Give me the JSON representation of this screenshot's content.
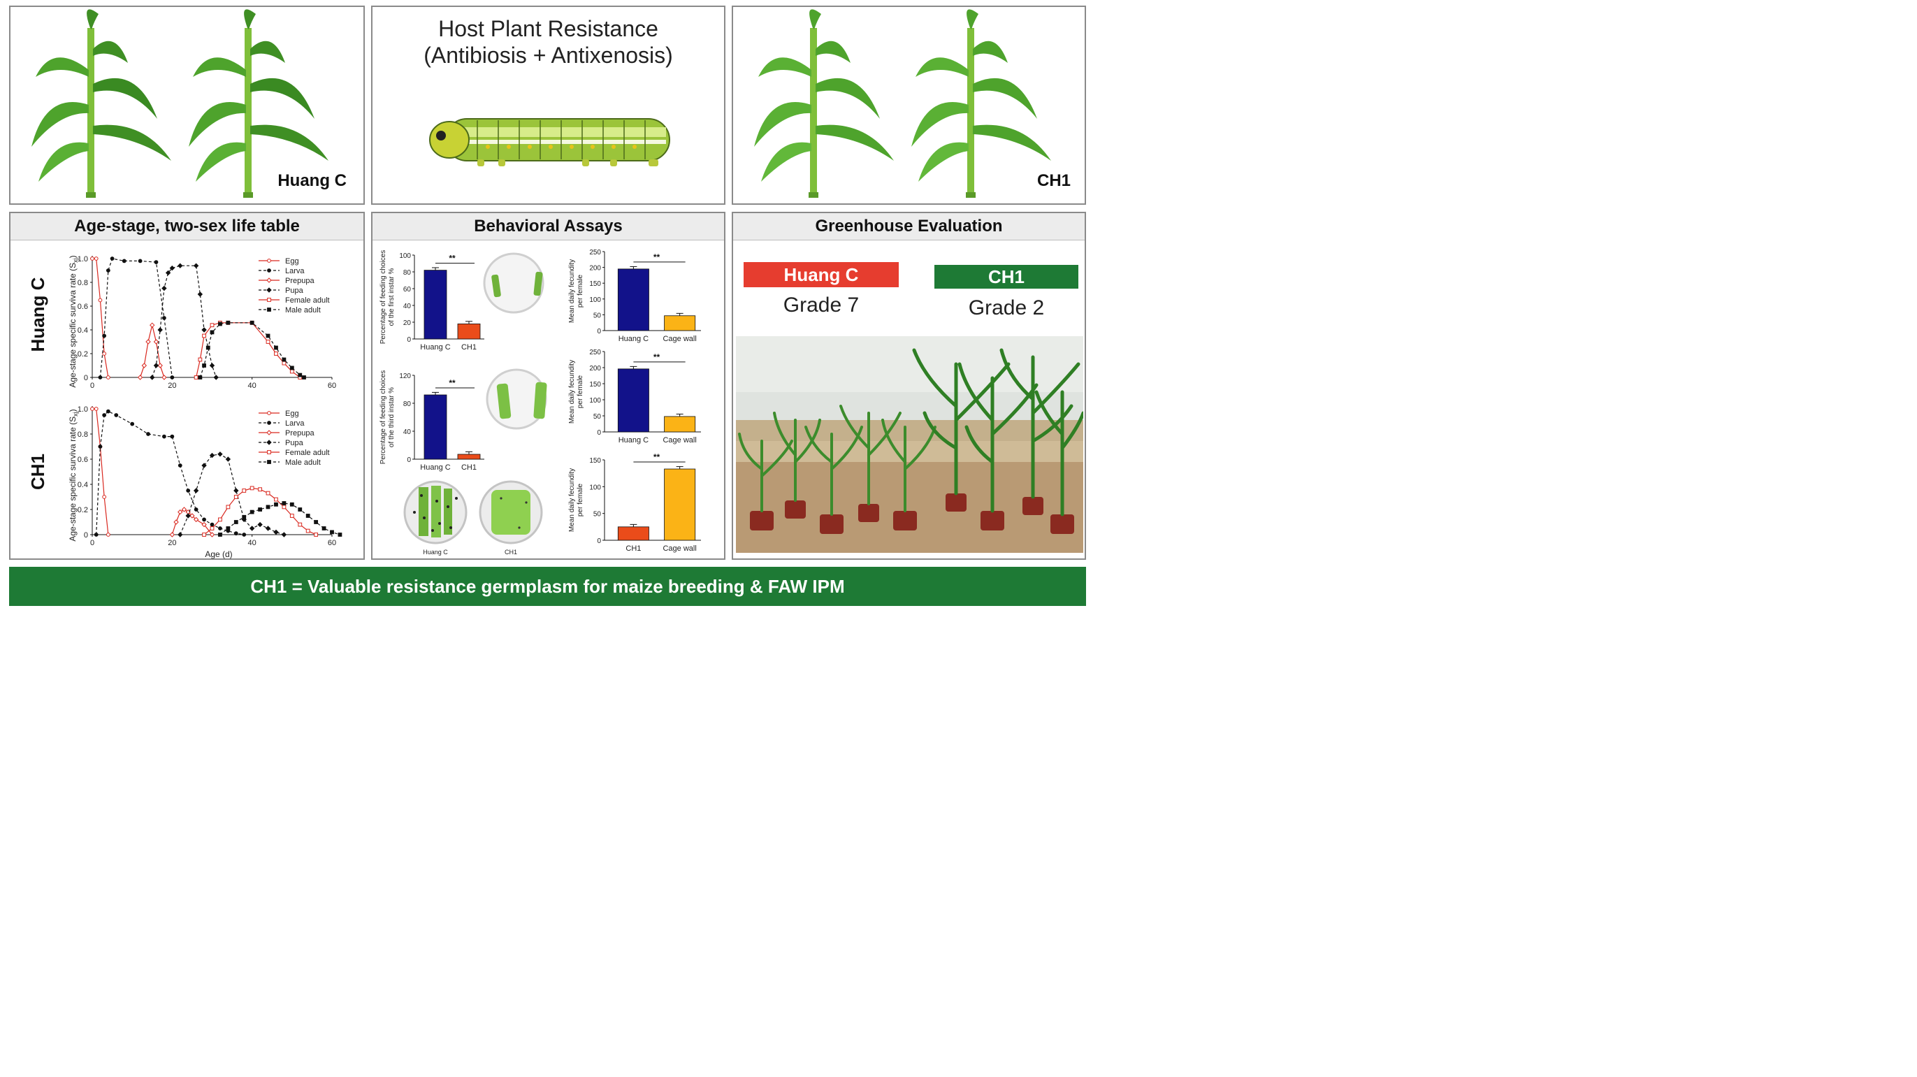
{
  "top": {
    "left_label": "Huang C",
    "right_label": "CH1",
    "center_title_line1": "Host Plant Resistance",
    "center_title_line2": "(Antibiosis + Antixenosis)"
  },
  "colors": {
    "huangc_red": "#e63d2f",
    "ch1_green": "#1e7a35",
    "bar_blue": "#12128a",
    "bar_orange": "#ea4c1a",
    "bar_yellow": "#fbb316",
    "line_red": "#d9281f"
  },
  "life_table": {
    "header": "Age-stage, two-sex life table",
    "row1_label": "Huang C",
    "row2_label": "CH1",
    "ylabel": "Age-stage specific surviva rate",
    "ysym": "(S",
    "ysub": "xj",
    "yclose": ")",
    "xlabel": "Age (d)",
    "legend": [
      "Egg",
      "Larva",
      "Prepupa",
      "Pupa",
      "Female adult",
      "Male adult"
    ],
    "y_ticks": [
      "0",
      "0.2",
      "0.4",
      "0.6",
      "0.8",
      "1.0"
    ],
    "x_ticks": [
      "0",
      "20",
      "40",
      "60"
    ]
  },
  "behavior": {
    "header": "Behavioral Assays",
    "chart1_ylabel1": "Percentage of feeding choices",
    "chart1_ylabel2": "of the first instar %",
    "chart2_ylabel1": "Percentage of feeding choices",
    "chart2_ylabel2": "of the third instar %",
    "fec_ylabel1": "Mean daily fecundity",
    "fec_ylabel2": "per female",
    "sig": "**",
    "photo_label_left": "Huang C",
    "photo_label_right": "CH1"
  },
  "greenhouse": {
    "header": "Greenhouse Evaluation",
    "huangc_tag": "Huang C",
    "huangc_grade": "Grade 7",
    "ch1_tag": "CH1",
    "ch1_grade": "Grade 2"
  },
  "footer": {
    "text": "CH1 = Valuable resistance germplasm for maize breeding & FAW IPM"
  },
  "chart_data": [
    {
      "type": "line",
      "panel": "Huang C",
      "xlim": [
        0,
        60
      ],
      "ylim": [
        0,
        1.0
      ],
      "series": [
        {
          "name": "Egg",
          "x": [
            0,
            1,
            2,
            3,
            4
          ],
          "y": [
            1.0,
            1.0,
            0.65,
            0.2,
            0.0
          ]
        },
        {
          "name": "Larva",
          "x": [
            2,
            3,
            4,
            5,
            8,
            12,
            16,
            18,
            20
          ],
          "y": [
            0,
            0.35,
            0.9,
            1.0,
            0.98,
            0.98,
            0.97,
            0.5,
            0.0
          ]
        },
        {
          "name": "Prepupa",
          "x": [
            12,
            13,
            14,
            15,
            16,
            17,
            18
          ],
          "y": [
            0,
            0.1,
            0.3,
            0.44,
            0.3,
            0.1,
            0.0
          ]
        },
        {
          "name": "Pupa",
          "x": [
            15,
            16,
            17,
            18,
            19,
            20,
            22,
            26,
            27,
            28,
            30,
            31
          ],
          "y": [
            0,
            0.1,
            0.4,
            0.75,
            0.88,
            0.92,
            0.94,
            0.94,
            0.7,
            0.4,
            0.1,
            0.0
          ]
        },
        {
          "name": "Female adult",
          "x": [
            26,
            27,
            28,
            30,
            32,
            34,
            40,
            44,
            46,
            48,
            50,
            52
          ],
          "y": [
            0,
            0.15,
            0.35,
            0.44,
            0.46,
            0.46,
            0.46,
            0.3,
            0.2,
            0.12,
            0.05,
            0.0
          ]
        },
        {
          "name": "Male adult",
          "x": [
            27,
            28,
            29,
            30,
            32,
            34,
            40,
            44,
            46,
            48,
            50,
            52,
            53
          ],
          "y": [
            0,
            0.1,
            0.25,
            0.38,
            0.45,
            0.46,
            0.46,
            0.35,
            0.25,
            0.15,
            0.08,
            0.02,
            0.0
          ]
        }
      ]
    },
    {
      "type": "line",
      "panel": "CH1",
      "xlim": [
        0,
        60
      ],
      "ylim": [
        0,
        1.0
      ],
      "series": [
        {
          "name": "Egg",
          "x": [
            0,
            1,
            2,
            3,
            4
          ],
          "y": [
            1.0,
            1.0,
            0.7,
            0.3,
            0.0
          ]
        },
        {
          "name": "Larva",
          "x": [
            1,
            2,
            3,
            4,
            6,
            10,
            14,
            18,
            20,
            22,
            24,
            26,
            28,
            30,
            32,
            34,
            36,
            38
          ],
          "y": [
            0,
            0.7,
            0.95,
            0.98,
            0.95,
            0.88,
            0.8,
            0.78,
            0.78,
            0.55,
            0.35,
            0.2,
            0.12,
            0.08,
            0.05,
            0.03,
            0.01,
            0.0
          ]
        },
        {
          "name": "Prepupa",
          "x": [
            20,
            21,
            22,
            23,
            24,
            25,
            26,
            28,
            30
          ],
          "y": [
            0,
            0.1,
            0.18,
            0.2,
            0.18,
            0.15,
            0.12,
            0.08,
            0.0
          ]
        },
        {
          "name": "Pupa",
          "x": [
            22,
            24,
            26,
            28,
            30,
            32,
            34,
            36,
            38,
            40,
            42,
            44,
            46,
            48
          ],
          "y": [
            0,
            0.15,
            0.35,
            0.55,
            0.63,
            0.64,
            0.6,
            0.35,
            0.12,
            0.05,
            0.08,
            0.05,
            0.02,
            0.0
          ]
        },
        {
          "name": "Female adult",
          "x": [
            28,
            30,
            32,
            34,
            36,
            38,
            40,
            42,
            44,
            46,
            48,
            50,
            52,
            54,
            56
          ],
          "y": [
            0,
            0.05,
            0.12,
            0.22,
            0.3,
            0.35,
            0.37,
            0.36,
            0.33,
            0.28,
            0.22,
            0.15,
            0.08,
            0.03,
            0.0
          ]
        },
        {
          "name": "Male adult",
          "x": [
            32,
            34,
            36,
            38,
            40,
            42,
            44,
            46,
            48,
            50,
            52,
            54,
            56,
            58,
            60,
            62
          ],
          "y": [
            0,
            0.05,
            0.1,
            0.14,
            0.18,
            0.2,
            0.22,
            0.24,
            0.25,
            0.24,
            0.2,
            0.15,
            0.1,
            0.05,
            0.02,
            0.0
          ]
        }
      ]
    },
    {
      "type": "bar",
      "categories": [
        "Huang C",
        "CH1"
      ],
      "values": [
        82,
        18
      ],
      "ylim": [
        0,
        100
      ],
      "ticks": [
        0,
        20,
        40,
        60,
        80,
        100
      ]
    },
    {
      "type": "bar",
      "categories": [
        "Huang C",
        "CH1"
      ],
      "values": [
        92,
        7
      ],
      "ylim": [
        0,
        120
      ],
      "ticks": [
        0,
        40,
        80,
        120
      ]
    },
    {
      "type": "bar",
      "categories": [
        "Huang C",
        "Cage wall"
      ],
      "values": [
        195,
        47
      ],
      "ylim": [
        0,
        250
      ],
      "ticks": [
        0,
        50,
        100,
        150,
        200,
        250
      ]
    },
    {
      "type": "bar",
      "categories": [
        "Huang C",
        "Cage wall"
      ],
      "values": [
        196,
        48
      ],
      "ylim": [
        0,
        250
      ],
      "ticks": [
        0,
        50,
        100,
        150,
        200,
        250
      ]
    },
    {
      "type": "bar",
      "categories": [
        "CH1",
        "Cage wall"
      ],
      "values": [
        25,
        133
      ],
      "ylim": [
        0,
        150
      ],
      "ticks": [
        0,
        50,
        100,
        150
      ]
    }
  ]
}
